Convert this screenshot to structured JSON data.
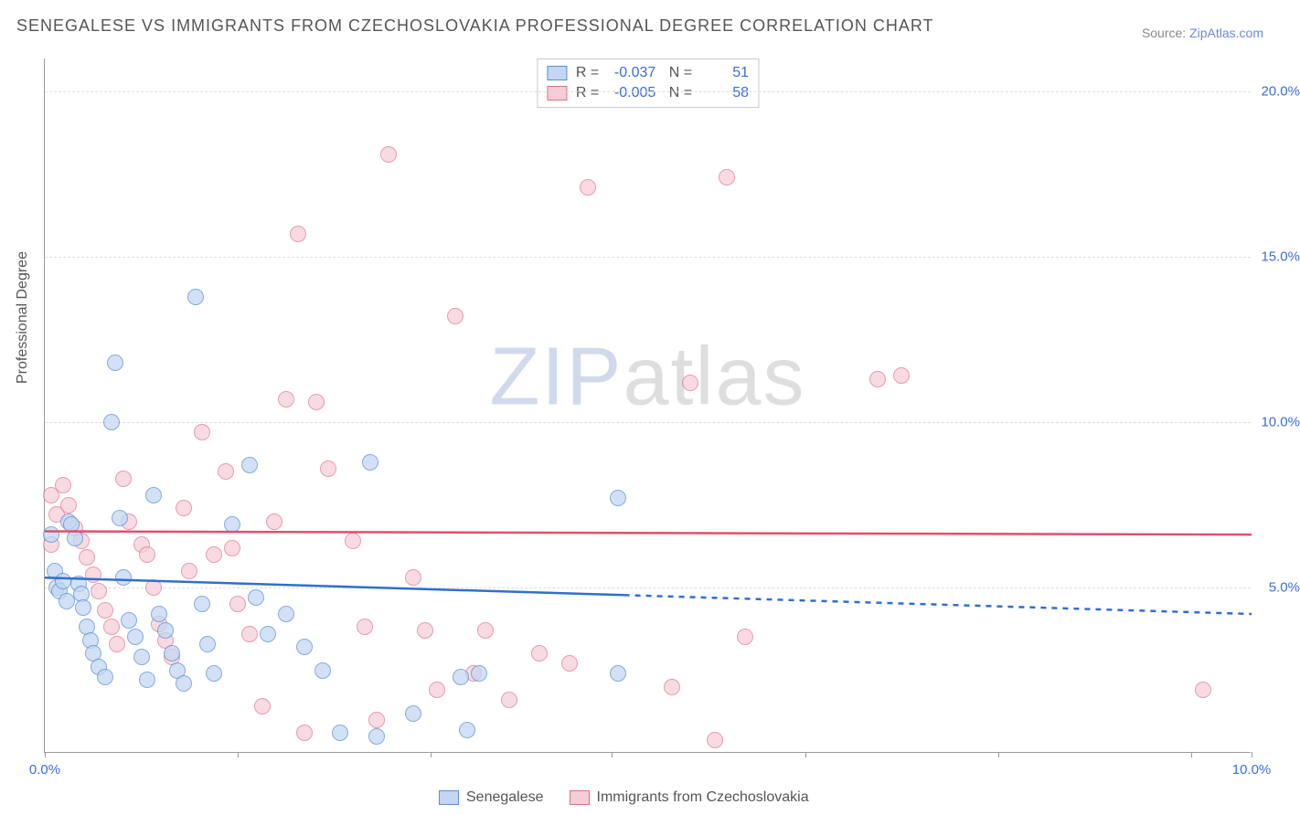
{
  "chart": {
    "type": "scatter",
    "title": "SENEGALESE VS IMMIGRANTS FROM CZECHOSLOVAKIA PROFESSIONAL DEGREE CORRELATION CHART",
    "source_label": "Source:",
    "source_name": "ZipAtlas.com",
    "source_color": "#6b8bd4",
    "ylabel": "Professional Degree",
    "background_color": "#ffffff",
    "grid_color": "#dddddd",
    "axis_color": "#999999",
    "tick_label_color": "#3b6fd6",
    "text_color": "#555555",
    "watermark": {
      "zip": "ZIP",
      "atlas": "atlas"
    },
    "xlim": [
      0,
      10
    ],
    "ylim": [
      0,
      21
    ],
    "xtick_positions": [
      0,
      1.6,
      3.2,
      4.7,
      6.3,
      7.9,
      9.5,
      10
    ],
    "xtick_labels": {
      "0": "0.0%",
      "10": "10.0%"
    },
    "ytick_positions": [
      5,
      10,
      15,
      20
    ],
    "ytick_labels": {
      "5": "5.0%",
      "10": "10.0%",
      "15": "15.0%",
      "20": "20.0%"
    },
    "marker_radius": 9,
    "marker_border_width": 1.5,
    "series": [
      {
        "name": "Senegalese",
        "fill": "#c3d7f2",
        "stroke": "#5b8fd6",
        "fill_opacity": 0.75,
        "trend": {
          "y_at_x0": 5.3,
          "y_at_xmax": 4.2,
          "solid_until_x": 4.8,
          "color": "#2f6fd0",
          "width": 2.5,
          "dash": "6,6"
        },
        "stats": {
          "R": "-0.037",
          "N": "51"
        },
        "points": [
          [
            0.05,
            6.6
          ],
          [
            0.08,
            5.5
          ],
          [
            0.1,
            5.0
          ],
          [
            0.12,
            4.9
          ],
          [
            0.15,
            5.2
          ],
          [
            0.18,
            4.6
          ],
          [
            0.2,
            7.0
          ],
          [
            0.22,
            6.9
          ],
          [
            0.25,
            6.5
          ],
          [
            0.28,
            5.1
          ],
          [
            0.3,
            4.8
          ],
          [
            0.32,
            4.4
          ],
          [
            0.35,
            3.8
          ],
          [
            0.38,
            3.4
          ],
          [
            0.4,
            3.0
          ],
          [
            0.45,
            2.6
          ],
          [
            0.5,
            2.3
          ],
          [
            0.55,
            10.0
          ],
          [
            0.58,
            11.8
          ],
          [
            0.62,
            7.1
          ],
          [
            0.65,
            5.3
          ],
          [
            0.7,
            4.0
          ],
          [
            0.75,
            3.5
          ],
          [
            0.8,
            2.9
          ],
          [
            0.85,
            2.2
          ],
          [
            0.9,
            7.8
          ],
          [
            0.95,
            4.2
          ],
          [
            1.0,
            3.7
          ],
          [
            1.05,
            3.0
          ],
          [
            1.1,
            2.5
          ],
          [
            1.15,
            2.1
          ],
          [
            1.25,
            13.8
          ],
          [
            1.3,
            4.5
          ],
          [
            1.35,
            3.3
          ],
          [
            1.4,
            2.4
          ],
          [
            1.55,
            6.9
          ],
          [
            1.7,
            8.7
          ],
          [
            1.75,
            4.7
          ],
          [
            1.85,
            3.6
          ],
          [
            2.0,
            4.2
          ],
          [
            2.15,
            3.2
          ],
          [
            2.3,
            2.5
          ],
          [
            2.45,
            0.6
          ],
          [
            2.7,
            8.8
          ],
          [
            2.75,
            0.5
          ],
          [
            3.05,
            1.2
          ],
          [
            3.45,
            2.3
          ],
          [
            3.5,
            0.7
          ],
          [
            3.6,
            2.4
          ],
          [
            4.75,
            2.4
          ],
          [
            4.75,
            7.7
          ]
        ]
      },
      {
        "name": "Immigrants from Czechoslovakia",
        "fill": "#f6cdd6",
        "stroke": "#e0708b",
        "fill_opacity": 0.7,
        "trend": {
          "y_at_x0": 6.7,
          "y_at_xmax": 6.6,
          "solid_until_x": 10,
          "color": "#e0506e",
          "width": 2.5,
          "dash": null
        },
        "stats": {
          "R": "-0.005",
          "N": "58"
        },
        "points": [
          [
            0.05,
            7.8
          ],
          [
            0.1,
            7.2
          ],
          [
            0.15,
            8.1
          ],
          [
            0.2,
            7.5
          ],
          [
            0.25,
            6.8
          ],
          [
            0.3,
            6.4
          ],
          [
            0.35,
            5.9
          ],
          [
            0.4,
            5.4
          ],
          [
            0.45,
            4.9
          ],
          [
            0.5,
            4.3
          ],
          [
            0.55,
            3.8
          ],
          [
            0.6,
            3.3
          ],
          [
            0.65,
            8.3
          ],
          [
            0.7,
            7.0
          ],
          [
            0.8,
            6.3
          ],
          [
            0.85,
            6.0
          ],
          [
            0.9,
            5.0
          ],
          [
            0.95,
            3.9
          ],
          [
            1.0,
            3.4
          ],
          [
            1.05,
            2.9
          ],
          [
            1.15,
            7.4
          ],
          [
            1.2,
            5.5
          ],
          [
            1.3,
            9.7
          ],
          [
            1.4,
            6.0
          ],
          [
            1.5,
            8.5
          ],
          [
            1.55,
            6.2
          ],
          [
            1.6,
            4.5
          ],
          [
            1.7,
            3.6
          ],
          [
            1.8,
            1.4
          ],
          [
            1.9,
            7.0
          ],
          [
            2.0,
            10.7
          ],
          [
            2.1,
            15.7
          ],
          [
            2.15,
            0.6
          ],
          [
            2.25,
            10.6
          ],
          [
            2.35,
            8.6
          ],
          [
            2.55,
            6.4
          ],
          [
            2.65,
            3.8
          ],
          [
            2.75,
            1.0
          ],
          [
            2.85,
            18.1
          ],
          [
            3.05,
            5.3
          ],
          [
            3.15,
            3.7
          ],
          [
            3.25,
            1.9
          ],
          [
            3.4,
            13.2
          ],
          [
            3.55,
            2.4
          ],
          [
            3.65,
            3.7
          ],
          [
            3.85,
            1.6
          ],
          [
            4.1,
            3.0
          ],
          [
            4.35,
            2.7
          ],
          [
            4.5,
            17.1
          ],
          [
            5.2,
            2.0
          ],
          [
            5.35,
            11.2
          ],
          [
            5.55,
            0.4
          ],
          [
            5.65,
            17.4
          ],
          [
            5.8,
            3.5
          ],
          [
            6.9,
            11.3
          ],
          [
            7.1,
            11.4
          ],
          [
            9.6,
            1.9
          ],
          [
            0.05,
            6.3
          ]
        ]
      }
    ],
    "bottom_legend": [
      {
        "swatch_fill": "#c3d7f2",
        "swatch_stroke": "#5b8fd6",
        "label": "Senegalese"
      },
      {
        "swatch_fill": "#f6cdd6",
        "swatch_stroke": "#e0708b",
        "label": "Immigrants from Czechoslovakia"
      }
    ]
  }
}
